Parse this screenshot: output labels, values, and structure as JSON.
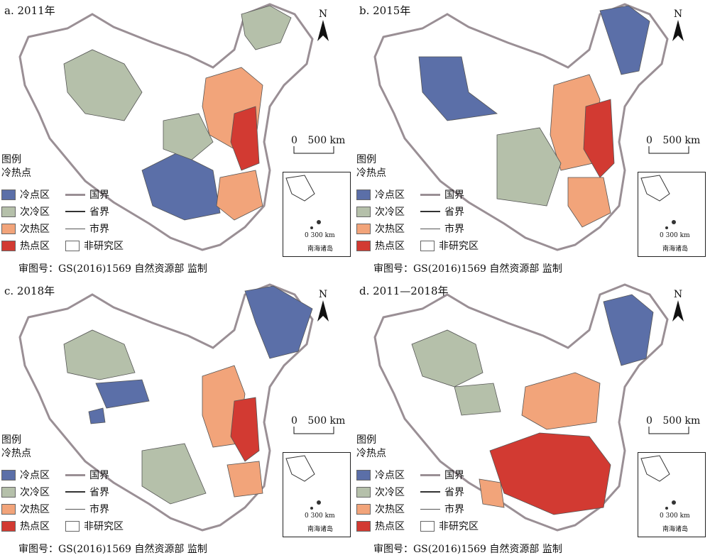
{
  "panels": [
    {
      "title": "a. 2011年",
      "map_id": "a"
    },
    {
      "title": "b. 2015年",
      "map_id": "b"
    },
    {
      "title": "c. 2018年",
      "map_id": "c"
    },
    {
      "title": "d. 2011—2018年",
      "map_id": "d"
    }
  ],
  "legend": {
    "title_line1": "图例",
    "title_line2": "冷热点",
    "items": [
      {
        "label": "冷点区",
        "kind": "fill",
        "color": "#5b6fa8"
      },
      {
        "label": "次冷区",
        "kind": "fill",
        "color": "#b5c0aa"
      },
      {
        "label": "次热区",
        "kind": "fill",
        "color": "#f2a47a"
      },
      {
        "label": "热点区",
        "kind": "fill",
        "color": "#d23a32"
      },
      {
        "label": "国界",
        "kind": "line",
        "color": "#9a8f95"
      },
      {
        "label": "省界",
        "kind": "line",
        "color": "#333333"
      },
      {
        "label": "市界",
        "kind": "line",
        "color": "#555555"
      },
      {
        "label": "非研究区",
        "kind": "fill",
        "color": "#ffffff"
      }
    ]
  },
  "scale_bar": {
    "zero": "0",
    "label": "500 km"
  },
  "inset": {
    "scale": "0  300 km",
    "caption": "南海诸岛"
  },
  "north": "N",
  "review_number": "审图号：GS(2016)1569  自然资源部  监制"
}
